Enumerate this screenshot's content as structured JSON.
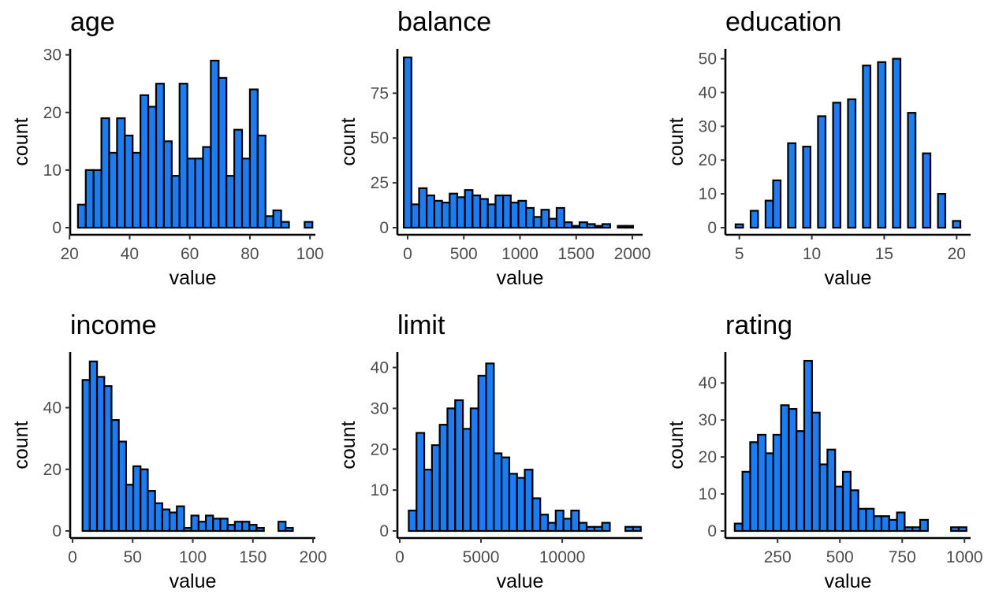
{
  "colors": {
    "bar_fill": "#1e7cf2",
    "bar_outline": "#000000",
    "background": "#ffffff"
  },
  "chart_data": [
    {
      "type": "bar",
      "title": "age",
      "xlabel": "value",
      "ylabel": "count",
      "xlim": [
        21,
        101
      ],
      "ylim": [
        0,
        30.5
      ],
      "xticks": [
        20,
        40,
        60,
        80,
        100
      ],
      "yticks": [
        0,
        10,
        20,
        30
      ],
      "bin_edges": [
        22.8,
        25.4,
        28,
        30.6,
        33.2,
        35.8,
        38.4,
        41,
        43.6,
        46.2,
        48.8,
        51.4,
        54,
        56.6,
        59.2,
        61.8,
        64.4,
        67,
        69.6,
        72.2,
        74.8,
        77.4,
        80,
        82.6,
        85.2,
        87.8,
        90.4,
        93,
        95.6,
        98.2,
        100.8
      ],
      "values": [
        4,
        10,
        10,
        19,
        13,
        19,
        16,
        13,
        23,
        21,
        25,
        15,
        9,
        25,
        12,
        12,
        14,
        29,
        26,
        9,
        17,
        12,
        24,
        16,
        2,
        3,
        1,
        0,
        0,
        1
      ],
      "grid": false
    },
    {
      "type": "bar",
      "title": "balance",
      "xlabel": "value",
      "ylabel": "count",
      "xlim": [
        -70,
        2070
      ],
      "ylim": [
        0,
        98
      ],
      "xticks": [
        0,
        500,
        1000,
        1500,
        2000
      ],
      "yticks": [
        0,
        25,
        50,
        75
      ],
      "bin_edges": [
        -34,
        34,
        102,
        170,
        238,
        306,
        374,
        442,
        510,
        578,
        646,
        714,
        782,
        850,
        918,
        986,
        1054,
        1122,
        1190,
        1258,
        1326,
        1394,
        1462,
        1530,
        1598,
        1666,
        1734,
        1802,
        1870,
        1938,
        2006
      ],
      "values": [
        95,
        13,
        22,
        18,
        15,
        14,
        19,
        17,
        21,
        18,
        16,
        13,
        18,
        18,
        14,
        15,
        11,
        6,
        10,
        5,
        11,
        3,
        1,
        3,
        2,
        1,
        2,
        0,
        1,
        1
      ],
      "grid": false
    },
    {
      "type": "bar",
      "title": "education",
      "xlabel": "value",
      "ylabel": "count",
      "xlim": [
        4.2,
        20.8
      ],
      "ylim": [
        0,
        52
      ],
      "xticks": [
        5,
        10,
        15,
        20
      ],
      "yticks": [
        0,
        10,
        20,
        30,
        40,
        50
      ],
      "bin_edges": [
        4.74,
        5.26,
        5.78,
        6.29,
        6.81,
        7.33,
        7.85,
        8.36,
        8.88,
        9.4,
        9.91,
        10.43,
        10.95,
        11.47,
        11.98,
        12.5,
        13.02,
        13.53,
        14.05,
        14.57,
        15.09,
        15.6,
        16.12,
        16.64,
        17.16,
        17.67,
        18.19,
        18.71,
        19.22,
        19.74,
        20.26
      ],
      "values": [
        1,
        0,
        5,
        0,
        8,
        14,
        0,
        25,
        0,
        24,
        0,
        33,
        0,
        37,
        0,
        38,
        0,
        48,
        0,
        49,
        0,
        50,
        0,
        34,
        0,
        22,
        0,
        10,
        0,
        2
      ],
      "grid": false
    },
    {
      "type": "bar",
      "title": "income",
      "xlabel": "value",
      "ylabel": "count",
      "xlim": [
        0,
        200
      ],
      "ylim": [
        0,
        57
      ],
      "xticks": [
        0,
        50,
        100,
        150,
        200
      ],
      "yticks": [
        0,
        20,
        40
      ],
      "bin_edges": [
        8.3,
        14.33,
        20.37,
        26.4,
        32.43,
        38.47,
        44.5,
        50.53,
        56.57,
        62.6,
        68.63,
        74.67,
        80.7,
        86.73,
        92.77,
        98.8,
        104.83,
        110.87,
        116.9,
        122.93,
        128.97,
        135,
        141.03,
        147.07,
        153.1,
        159.13,
        165.17,
        171.2,
        177.23,
        183.27,
        189.3
      ],
      "values": [
        49,
        55,
        50,
        47,
        36,
        29,
        15,
        21,
        20,
        13,
        9,
        7,
        6,
        8,
        1,
        5,
        3,
        5,
        4,
        4,
        2,
        3,
        3,
        2,
        1,
        0,
        0,
        3,
        1,
        0
      ],
      "grid": false
    },
    {
      "type": "bar",
      "title": "limit",
      "xlabel": "value",
      "ylabel": "count",
      "xlim": [
        0,
        14800
      ],
      "ylim": [
        0,
        43
      ],
      "xticks": [
        0,
        5000,
        10000
      ],
      "yticks": [
        0,
        10,
        20,
        30,
        40
      ],
      "bin_edges": [
        555,
        1031,
        1507,
        1983,
        2459,
        2935,
        3411,
        3887,
        4363,
        4839,
        5315,
        5791,
        6267,
        6743,
        7219,
        7695,
        8171,
        8647,
        9123,
        9599,
        10075,
        10551,
        11027,
        11503,
        11979,
        12455,
        12931,
        13407,
        13883,
        14359,
        14835
      ],
      "values": [
        5,
        24,
        15,
        21,
        26,
        30,
        32,
        25,
        30,
        38,
        41,
        19,
        18,
        14,
        13,
        15,
        8,
        4,
        2,
        5,
        3,
        5,
        2,
        1,
        1,
        2,
        0,
        0,
        1,
        1
      ],
      "grid": false
    },
    {
      "type": "bar",
      "title": "rating",
      "xlabel": "value",
      "ylabel": "count",
      "xlim": [
        50,
        1015
      ],
      "ylim": [
        0,
        47.5
      ],
      "xticks": [
        250,
        500,
        750,
        1000
      ],
      "yticks": [
        0,
        10,
        20,
        30,
        40
      ],
      "bin_edges": [
        78,
        109,
        140,
        171,
        202,
        233,
        264,
        295,
        326,
        357,
        388,
        419,
        450,
        481,
        512,
        543,
        574,
        605,
        636,
        667,
        698,
        729,
        760,
        791,
        822,
        853,
        884,
        915,
        946,
        977,
        1008
      ],
      "values": [
        2,
        16,
        24,
        26,
        21,
        26,
        34,
        33,
        27,
        46,
        32,
        18,
        22,
        12,
        16,
        11,
        6,
        6,
        4,
        4,
        3,
        5,
        1,
        1,
        3,
        0,
        0,
        0,
        1,
        1
      ],
      "grid": false
    }
  ]
}
